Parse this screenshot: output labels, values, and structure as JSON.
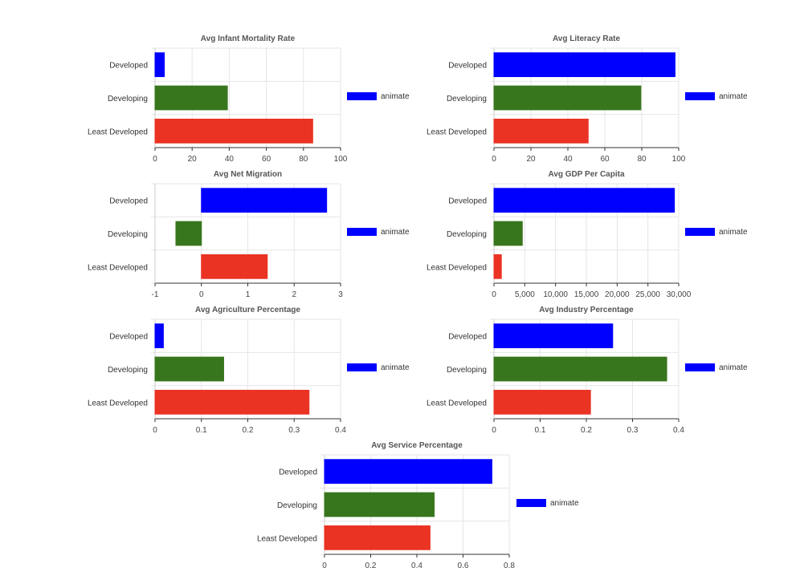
{
  "chart_data": [
    {
      "type": "bar",
      "title": "Avg Infant Mortality Rate",
      "categories": [
        "Developed",
        "Developing",
        "Least Developed"
      ],
      "series": [
        {
          "name": "animate",
          "values": [
            5,
            39,
            85
          ]
        }
      ],
      "colors": [
        "#0000ff",
        "#38761d",
        "#ea3323"
      ],
      "xlim": [
        0,
        100
      ],
      "ticks": [
        0,
        20,
        40,
        60,
        80,
        100
      ],
      "tick_labels": [
        "0",
        "20",
        "40",
        "60",
        "80",
        "100"
      ],
      "grid": true,
      "legend": "right"
    },
    {
      "type": "bar",
      "title": "Avg Literacy Rate",
      "categories": [
        "Developed",
        "Developing",
        "Least Developed"
      ],
      "series": [
        {
          "name": "animate",
          "values": [
            98,
            79.5,
            51
          ]
        }
      ],
      "colors": [
        "#0000ff",
        "#38761d",
        "#ea3323"
      ],
      "xlim": [
        0,
        100
      ],
      "ticks": [
        0,
        20,
        40,
        60,
        80,
        100
      ],
      "tick_labels": [
        "0",
        "20",
        "40",
        "60",
        "80",
        "100"
      ],
      "grid": true,
      "legend": "right"
    },
    {
      "type": "bar",
      "title": "Avg Net Migration",
      "categories": [
        "Developed",
        "Developing",
        "Least Developed"
      ],
      "series": [
        {
          "name": "animate",
          "values": [
            2.7,
            -0.55,
            1.42
          ]
        }
      ],
      "colors": [
        "#0000ff",
        "#38761d",
        "#ea3323"
      ],
      "xlim": [
        -1,
        3
      ],
      "ticks": [
        -1,
        0,
        1,
        2,
        3
      ],
      "tick_labels": [
        "-1",
        "0",
        "1",
        "2",
        "3"
      ],
      "grid": true,
      "legend": "right"
    },
    {
      "type": "bar",
      "title": "Avg GDP Per Capita",
      "categories": [
        "Developed",
        "Developing",
        "Least Developed"
      ],
      "series": [
        {
          "name": "animate",
          "values": [
            29300,
            4600,
            1200
          ]
        }
      ],
      "colors": [
        "#0000ff",
        "#38761d",
        "#ea3323"
      ],
      "xlim": [
        0,
        30000
      ],
      "ticks": [
        0,
        5000,
        10000,
        15000,
        20000,
        25000,
        30000
      ],
      "tick_labels": [
        "0",
        "5,000",
        "10,000",
        "15,000",
        "20,000",
        "25,000",
        "30,000"
      ],
      "grid": true,
      "legend": "right"
    },
    {
      "type": "bar",
      "title": "Avg Agriculture Percentage",
      "categories": [
        "Developed",
        "Developing",
        "Least Developed"
      ],
      "series": [
        {
          "name": "animate",
          "values": [
            0.018,
            0.148,
            0.332
          ]
        }
      ],
      "colors": [
        "#0000ff",
        "#38761d",
        "#ea3323"
      ],
      "xlim": [
        0,
        0.4
      ],
      "ticks": [
        0,
        0.1,
        0.2,
        0.3,
        0.4
      ],
      "tick_labels": [
        "0",
        "0.1",
        "0.2",
        "0.3",
        "0.4"
      ],
      "grid": true,
      "legend": "right"
    },
    {
      "type": "bar",
      "title": "Avg Industry Percentage",
      "categories": [
        "Developed",
        "Developing",
        "Least Developed"
      ],
      "series": [
        {
          "name": "animate",
          "values": [
            0.257,
            0.374,
            0.209
          ]
        }
      ],
      "colors": [
        "#0000ff",
        "#38761d",
        "#ea3323"
      ],
      "xlim": [
        0,
        0.4
      ],
      "ticks": [
        0,
        0.1,
        0.2,
        0.3,
        0.4
      ],
      "tick_labels": [
        "0",
        "0.1",
        "0.2",
        "0.3",
        "0.4"
      ],
      "grid": true,
      "legend": "right"
    },
    {
      "type": "bar",
      "title": "Avg Service Percentage",
      "categories": [
        "Developed",
        "Developing",
        "Least Developed"
      ],
      "series": [
        {
          "name": "animate",
          "values": [
            0.725,
            0.475,
            0.457
          ]
        }
      ],
      "colors": [
        "#0000ff",
        "#38761d",
        "#ea3323"
      ],
      "xlim": [
        0,
        0.8
      ],
      "ticks": [
        0,
        0.2,
        0.4,
        0.6,
        0.8
      ],
      "tick_labels": [
        "0",
        "0.2",
        "0.4",
        "0.6",
        "0.8"
      ],
      "grid": true,
      "legend": "right"
    }
  ]
}
